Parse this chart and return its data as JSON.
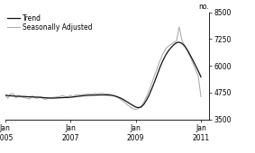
{
  "ylabel": "no.",
  "ylim": [
    3500,
    8500
  ],
  "yticks": [
    3500,
    4750,
    6000,
    7250,
    8500
  ],
  "xlim_start": 2005.0,
  "xlim_end": 2011.25,
  "xtick_positions": [
    2005.0,
    2007.0,
    2009.0,
    2011.0
  ],
  "xtick_labels": [
    "Jan\n2005",
    "Jan\n2007",
    "Jan\n2009",
    "Jan\n2011"
  ],
  "legend_entries": [
    "Trend",
    "Seasonally Adjusted"
  ],
  "trend_color": "#111111",
  "seasonal_color": "#aaaaaa",
  "trend_linewidth": 0.9,
  "seasonal_linewidth": 0.75,
  "background_color": "#ffffff",
  "trend_x": [
    2005.0,
    2005.083,
    2005.167,
    2005.25,
    2005.333,
    2005.417,
    2005.5,
    2005.583,
    2005.667,
    2005.75,
    2005.833,
    2005.917,
    2006.0,
    2006.083,
    2006.167,
    2006.25,
    2006.333,
    2006.417,
    2006.5,
    2006.583,
    2006.667,
    2006.75,
    2006.833,
    2006.917,
    2007.0,
    2007.083,
    2007.167,
    2007.25,
    2007.333,
    2007.417,
    2007.5,
    2007.583,
    2007.667,
    2007.75,
    2007.833,
    2007.917,
    2008.0,
    2008.083,
    2008.167,
    2008.25,
    2008.333,
    2008.417,
    2008.5,
    2008.583,
    2008.667,
    2008.75,
    2008.833,
    2008.917,
    2009.0,
    2009.083,
    2009.167,
    2009.25,
    2009.333,
    2009.417,
    2009.5,
    2009.583,
    2009.667,
    2009.75,
    2009.833,
    2009.917,
    2010.0,
    2010.083,
    2010.167,
    2010.25,
    2010.333,
    2010.417,
    2010.5,
    2010.583,
    2010.667,
    2010.75,
    2010.833,
    2010.917,
    2011.0
  ],
  "trend_y": [
    4620,
    4610,
    4600,
    4590,
    4580,
    4575,
    4570,
    4565,
    4558,
    4550,
    4545,
    4540,
    4535,
    4525,
    4515,
    4505,
    4495,
    4490,
    4492,
    4498,
    4505,
    4512,
    4518,
    4522,
    4530,
    4545,
    4560,
    4575,
    4590,
    4605,
    4615,
    4622,
    4628,
    4632,
    4636,
    4640,
    4640,
    4638,
    4632,
    4622,
    4600,
    4565,
    4518,
    4458,
    4385,
    4305,
    4222,
    4148,
    4075,
    4048,
    4075,
    4200,
    4400,
    4650,
    4950,
    5270,
    5610,
    5950,
    6240,
    6490,
    6690,
    6850,
    6980,
    7080,
    7100,
    7048,
    6925,
    6740,
    6510,
    6270,
    6020,
    5760,
    5480
  ],
  "seasonal_x": [
    2005.0,
    2005.083,
    2005.167,
    2005.25,
    2005.333,
    2005.417,
    2005.5,
    2005.583,
    2005.667,
    2005.75,
    2005.833,
    2005.917,
    2006.0,
    2006.083,
    2006.167,
    2006.25,
    2006.333,
    2006.417,
    2006.5,
    2006.583,
    2006.667,
    2006.75,
    2006.833,
    2006.917,
    2007.0,
    2007.083,
    2007.167,
    2007.25,
    2007.333,
    2007.417,
    2007.5,
    2007.583,
    2007.667,
    2007.75,
    2007.833,
    2007.917,
    2008.0,
    2008.083,
    2008.167,
    2008.25,
    2008.333,
    2008.417,
    2008.5,
    2008.583,
    2008.667,
    2008.75,
    2008.833,
    2008.917,
    2009.0,
    2009.083,
    2009.167,
    2009.25,
    2009.333,
    2009.417,
    2009.5,
    2009.583,
    2009.667,
    2009.75,
    2009.833,
    2009.917,
    2010.0,
    2010.083,
    2010.167,
    2010.25,
    2010.333,
    2010.417,
    2010.5,
    2010.583,
    2010.667,
    2010.75,
    2010.833,
    2010.917,
    2011.0
  ],
  "seasonal_y": [
    4700,
    4480,
    4680,
    4700,
    4500,
    4620,
    4545,
    4510,
    4480,
    4450,
    4600,
    4490,
    4490,
    4560,
    4460,
    4430,
    4520,
    4510,
    4530,
    4545,
    4555,
    4610,
    4570,
    4550,
    4620,
    4560,
    4640,
    4640,
    4645,
    4660,
    4675,
    4685,
    4662,
    4710,
    4690,
    4710,
    4705,
    4685,
    4680,
    4660,
    4605,
    4535,
    4470,
    4385,
    4285,
    4180,
    4080,
    4000,
    3960,
    4010,
    4090,
    4300,
    4560,
    4860,
    5210,
    5560,
    5910,
    6260,
    6555,
    6790,
    6910,
    6990,
    7090,
    7160,
    7820,
    7200,
    6950,
    6690,
    6440,
    6135,
    5830,
    5530,
    4560
  ]
}
